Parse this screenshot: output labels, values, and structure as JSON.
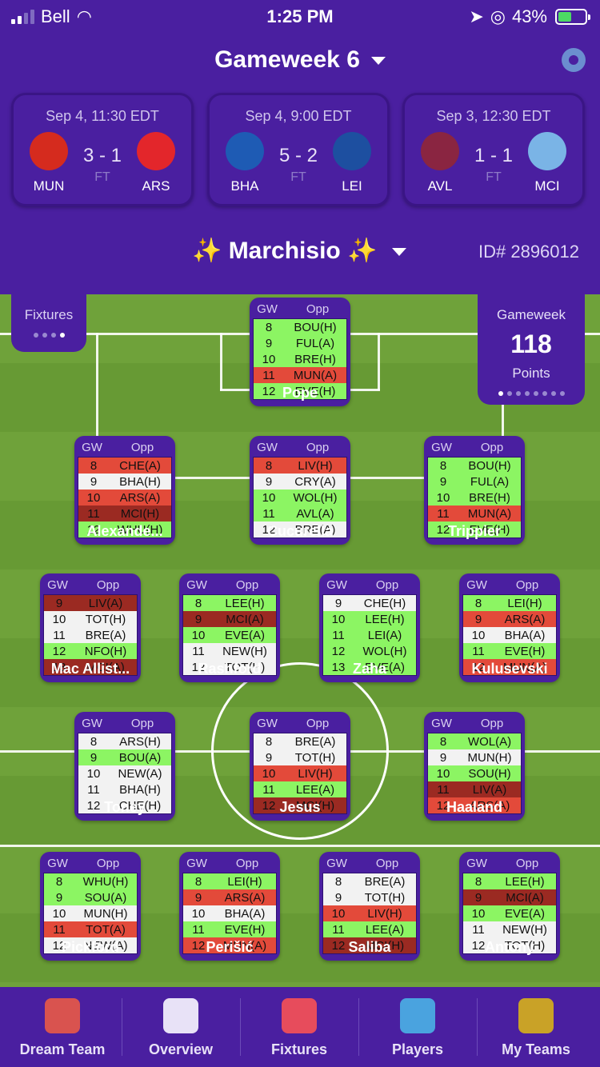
{
  "status": {
    "carrier": "Bell",
    "time": "1:25 PM",
    "battery": "43%"
  },
  "header": {
    "title": "Gameweek 6"
  },
  "matches": [
    {
      "date": "Sep 4, 11:30 EDT",
      "home": "MUN",
      "away": "ARS",
      "score": "3 - 1",
      "status": "FT",
      "home_color": "#d52b1e",
      "away_color": "#e3262b"
    },
    {
      "date": "Sep 4, 9:00 EDT",
      "home": "BHA",
      "away": "LEI",
      "score": "5 - 2",
      "status": "FT",
      "home_color": "#1e5bb4",
      "away_color": "#1d4fa0"
    },
    {
      "date": "Sep 3, 12:30 EDT",
      "home": "AVL",
      "away": "MCI",
      "score": "1 - 1",
      "status": "FT",
      "home_color": "#8a2541",
      "away_color": "#7ab4e6"
    }
  ],
  "team": {
    "name": "✨ Marchisio ✨",
    "id": "ID# 2896012"
  },
  "fixtures_tab": {
    "label": "Fixtures"
  },
  "points": {
    "title": "Gameweek",
    "value": "118",
    "label": "Points"
  },
  "table_headers": {
    "gw": "GW",
    "opp": "Opp"
  },
  "players": [
    {
      "name": "Pope",
      "rows": [
        [
          "8",
          "BOU(H)",
          2
        ],
        [
          "9",
          "FUL(A)",
          2
        ],
        [
          "10",
          "BRE(H)",
          2
        ],
        [
          "11",
          "MUN(A)",
          3
        ],
        [
          "12",
          "EVE(H)",
          2
        ]
      ]
    },
    {
      "name": "Alexande...",
      "rows": [
        [
          "8",
          "CHE(A)",
          3
        ],
        [
          "9",
          "BHA(H)",
          1
        ],
        [
          "10",
          "ARS(A)",
          3
        ],
        [
          "11",
          "MCI(H)",
          4
        ],
        [
          "12",
          "WHU(H)",
          2
        ]
      ]
    },
    {
      "name": "Cucurella",
      "rows": [
        [
          "8",
          "LIV(H)",
          3
        ],
        [
          "9",
          "CRY(A)",
          1
        ],
        [
          "10",
          "WOL(H)",
          2
        ],
        [
          "11",
          "AVL(A)",
          2
        ],
        [
          "12",
          "BRE(A)",
          1
        ]
      ]
    },
    {
      "name": "Trippier",
      "rows": [
        [
          "8",
          "BOU(H)",
          2
        ],
        [
          "9",
          "FUL(A)",
          2
        ],
        [
          "10",
          "BRE(H)",
          2
        ],
        [
          "11",
          "MUN(A)",
          3
        ],
        [
          "12",
          "EVE(H)",
          2
        ]
      ]
    },
    {
      "name": "Mac Allist...",
      "rows": [
        [
          "9",
          "LIV(A)",
          4
        ],
        [
          "10",
          "TOT(H)",
          1
        ],
        [
          "11",
          "BRE(A)",
          1
        ],
        [
          "12",
          "NFO(H)",
          2
        ],
        [
          "13",
          "MCI(A)",
          4
        ]
      ]
    },
    {
      "name": "Rashford",
      "rows": [
        [
          "8",
          "LEE(H)",
          2
        ],
        [
          "9",
          "MCI(A)",
          4
        ],
        [
          "10",
          "EVE(A)",
          2
        ],
        [
          "11",
          "NEW(H)",
          1
        ],
        [
          "12",
          "TOT(H)",
          1
        ]
      ]
    },
    {
      "name": "Zaha",
      "rows": [
        [
          "9",
          "CHE(H)",
          1
        ],
        [
          "10",
          "LEE(H)",
          2
        ],
        [
          "11",
          "LEI(A)",
          2
        ],
        [
          "12",
          "WOL(H)",
          2
        ],
        [
          "13",
          "EVE(A)",
          2
        ]
      ]
    },
    {
      "name": "Kulusevski",
      "rows": [
        [
          "8",
          "LEI(H)",
          2
        ],
        [
          "9",
          "ARS(A)",
          3
        ],
        [
          "10",
          "BHA(A)",
          1
        ],
        [
          "11",
          "EVE(H)",
          2
        ],
        [
          "12",
          "MUN(A)",
          3
        ]
      ]
    },
    {
      "name": "Toney",
      "rows": [
        [
          "8",
          "ARS(H)",
          1
        ],
        [
          "9",
          "BOU(A)",
          2
        ],
        [
          "10",
          "NEW(A)",
          1
        ],
        [
          "11",
          "BHA(H)",
          1
        ],
        [
          "12",
          "CHE(H)",
          1
        ]
      ]
    },
    {
      "name": "Jesus",
      "rows": [
        [
          "8",
          "BRE(A)",
          1
        ],
        [
          "9",
          "TOT(H)",
          1
        ],
        [
          "10",
          "LIV(H)",
          3
        ],
        [
          "11",
          "LEE(A)",
          2
        ],
        [
          "12",
          "MCI(H)",
          4
        ]
      ]
    },
    {
      "name": "Haaland",
      "rows": [
        [
          "8",
          "WOL(A)",
          2
        ],
        [
          "9",
          "MUN(H)",
          1
        ],
        [
          "10",
          "SOU(H)",
          2
        ],
        [
          "11",
          "LIV(A)",
          4
        ],
        [
          "12",
          "ARS(A)",
          3
        ]
      ]
    },
    {
      "name": "Pickford",
      "rows": [
        [
          "8",
          "WHU(H)",
          2
        ],
        [
          "9",
          "SOU(A)",
          2
        ],
        [
          "10",
          "MUN(H)",
          1
        ],
        [
          "11",
          "TOT(A)",
          3
        ],
        [
          "12",
          "NEW(A)",
          1
        ]
      ]
    },
    {
      "name": "Perišić",
      "rows": [
        [
          "8",
          "LEI(H)",
          2
        ],
        [
          "9",
          "ARS(A)",
          3
        ],
        [
          "10",
          "BHA(A)",
          1
        ],
        [
          "11",
          "EVE(H)",
          2
        ],
        [
          "12",
          "MUN(A)",
          3
        ]
      ]
    },
    {
      "name": "Saliba",
      "rows": [
        [
          "8",
          "BRE(A)",
          1
        ],
        [
          "9",
          "TOT(H)",
          1
        ],
        [
          "10",
          "LIV(H)",
          3
        ],
        [
          "11",
          "LEE(A)",
          2
        ],
        [
          "12",
          "MCI(H)",
          4
        ]
      ]
    },
    {
      "name": "Antony",
      "rows": [
        [
          "8",
          "LEE(H)",
          2
        ],
        [
          "9",
          "MCI(A)",
          4
        ],
        [
          "10",
          "EVE(A)",
          2
        ],
        [
          "11",
          "NEW(H)",
          1
        ],
        [
          "12",
          "TOT(H)",
          1
        ]
      ]
    }
  ],
  "tabs": [
    {
      "label": "Dream Team",
      "icon": "trophy-icon"
    },
    {
      "label": "Overview",
      "icon": "tactics-board-icon"
    },
    {
      "label": "Fixtures",
      "icon": "calendar-ball-icon"
    },
    {
      "label": "Players",
      "icon": "player-search-icon"
    },
    {
      "label": "My Teams",
      "icon": "fc-shield-icon"
    }
  ]
}
